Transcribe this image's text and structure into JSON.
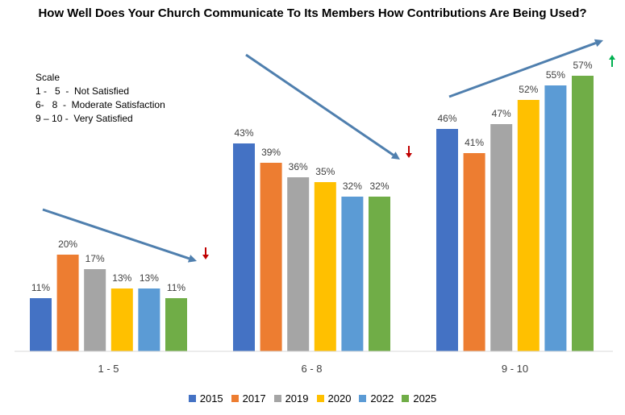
{
  "chart_data": {
    "type": "bar",
    "title": "How Well Does Your Church Communicate To Its Members How Contributions Are Being Used?",
    "categories": [
      "1 - 5",
      "6 - 8",
      "9 - 10"
    ],
    "series": [
      {
        "name": "2015",
        "values": [
          11,
          43,
          46
        ],
        "labels": [
          "11%",
          "43%",
          "46%"
        ],
        "color": "#4472C4"
      },
      {
        "name": "2017",
        "values": [
          20,
          39,
          41
        ],
        "labels": [
          "20%",
          "39%",
          "41%"
        ],
        "color": "#ED7D31"
      },
      {
        "name": "2019",
        "values": [
          17,
          36,
          47
        ],
        "labels": [
          "17%",
          "36%",
          "47%"
        ],
        "color": "#A5A5A5"
      },
      {
        "name": "2020",
        "values": [
          13,
          35,
          52
        ],
        "labels": [
          "13%",
          "35%",
          "52%"
        ],
        "color": "#FFC000"
      },
      {
        "name": "2022",
        "values": [
          13,
          32,
          55
        ],
        "labels": [
          "13%",
          "32%",
          "55%"
        ],
        "color": "#5B9BD5"
      },
      {
        "name": "2025",
        "values": [
          11,
          32,
          57
        ],
        "labels": [
          "11%",
          "32%",
          "57%"
        ],
        "color": "#70AD47"
      }
    ],
    "ylim": [
      0,
      57
    ],
    "xlabel": "",
    "ylabel": "",
    "legend": "bottom",
    "grid": false,
    "trends": [
      {
        "category": "1 - 5",
        "direction": "down",
        "color": "#C00000"
      },
      {
        "category": "6 - 8",
        "direction": "down",
        "color": "#C00000"
      },
      {
        "category": "9 - 10",
        "direction": "up",
        "color": "#00B050"
      }
    ],
    "trend_line_color": "#4F7FAE"
  },
  "scale": {
    "heading": "Scale",
    "lines": [
      "1 -   5  -  Not Satisfied",
      "6-   8  -  Moderate Satisfaction",
      "9 – 10 -  Very Satisfied"
    ]
  }
}
